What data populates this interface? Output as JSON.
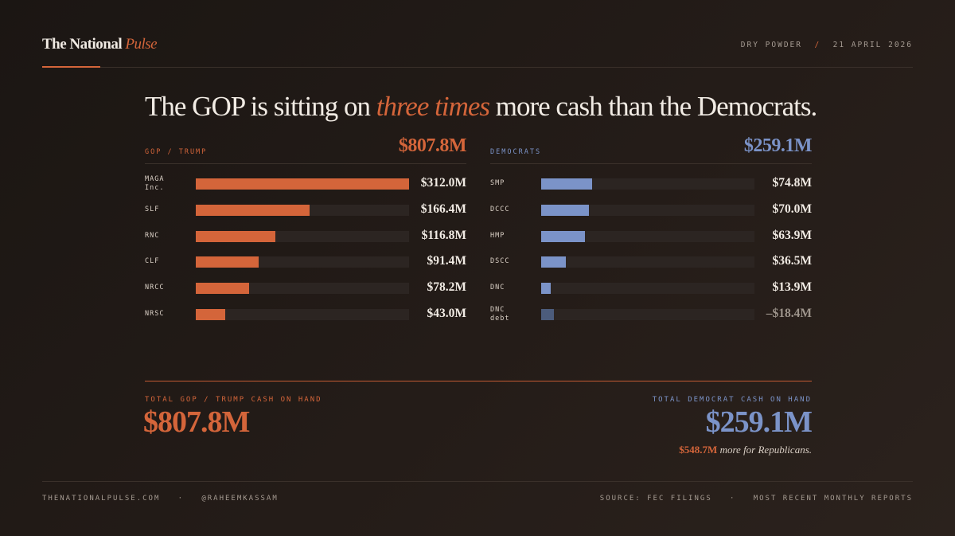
{
  "header": {
    "brand": "The National",
    "brand_accent": "Pulse",
    "section": "DRY POWDER",
    "separator": "/",
    "date": "21 APRIL 2026"
  },
  "headline": {
    "before": "The GOP is sitting on ",
    "accent": "three times",
    "after": " more cash than the Democrats."
  },
  "chart_data": [
    {
      "type": "bar",
      "orientation": "horizontal",
      "title": "GOP / TRUMP",
      "total": "$807.8M",
      "categories": [
        "MAGA Inc.",
        "SLF",
        "RNC",
        "CLF",
        "NRCC",
        "NRSC"
      ],
      "values": [
        312.0,
        166.4,
        116.8,
        91.4,
        78.2,
        43.0
      ],
      "value_labels": [
        "$312.0M",
        "$166.4M",
        "$116.8M",
        "$91.4M",
        "$78.2M",
        "$43.0M"
      ],
      "color": "#d4653a",
      "xlim": [
        0,
        312
      ]
    },
    {
      "type": "bar",
      "orientation": "horizontal",
      "title": "DEMOCRATS",
      "total": "$259.1M",
      "categories": [
        "SMP",
        "DCCC",
        "HMP",
        "DSCC",
        "DNC",
        "DNC debt"
      ],
      "values": [
        74.8,
        70.0,
        63.9,
        36.5,
        13.9,
        -18.4
      ],
      "value_labels": [
        "$74.8M",
        "$70.0M",
        "$63.9M",
        "$36.5M",
        "$13.9M",
        "–$18.4M"
      ],
      "color": "#7b93c8",
      "negative_color": "#4c5c7c",
      "xlim": [
        0,
        312
      ]
    }
  ],
  "totals": {
    "gop_label": "TOTAL GOP / TRUMP CASH ON HAND",
    "dem_label": "TOTAL DEMOCRAT CASH ON HAND",
    "difference": "$548.7M",
    "difference_text": " more for Republicans."
  },
  "footer": {
    "site": "THENATIONALPULSE.COM",
    "dot": "·",
    "handle": "@RAHEEMKASSAM",
    "source": "SOURCE: FEC FILINGS",
    "reports": "MOST RECENT MONTHLY REPORTS"
  }
}
